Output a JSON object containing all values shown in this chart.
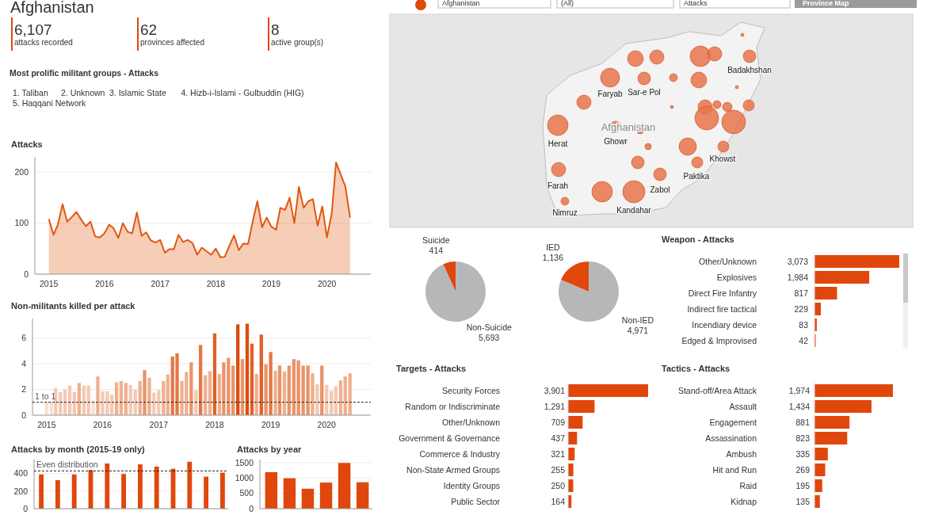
{
  "chart_data": [
    {
      "type": "other",
      "annotations": [
        "Afghanistan",
        "(All)",
        "Attacks",
        "Province Map"
      ]
    },
    {
      "type": "other",
      "title": "Afghanistan",
      "annotations": [
        "6,107",
        "attacks recorded",
        "62",
        "provinces affected",
        "8",
        "active group(s)"
      ]
    },
    {
      "type": "other",
      "title": "Most prolific militant groups - Attacks",
      "annotations": [
        "1. Taliban",
        "2. Unknown",
        "3. Islamic State",
        "4. Hizb-i-Islami - Gulbuddin (HIG)",
        "5. Haqqani Network"
      ]
    },
    {
      "type": "other",
      "annotations": [
        "Badakhshan",
        "Faryab",
        "Sar-e Pol",
        "Afghanistan",
        "Herat",
        "Ghowr",
        "Khowst",
        "Paktika",
        "Farah",
        "Zabol",
        "Nimruz",
        "Kandahar"
      ]
    },
    {
      "type": "area",
      "title": "Attacks",
      "color": "#e0580f",
      "grid": "y",
      "xlim": [
        "2014-10-01",
        "2020-10-15"
      ],
      "xticks": [
        "2015",
        "2016",
        "2017",
        "2018",
        "2019",
        "2020"
      ],
      "ylim": [
        0,
        230
      ],
      "yticks": [
        0,
        100,
        200
      ],
      "x": [
        "2015-01",
        "2015-02",
        "2015-03",
        "2015-04",
        "2015-05",
        "2015-06",
        "2015-07",
        "2015-08",
        "2015-09",
        "2015-10",
        "2015-11",
        "2015-12",
        "2016-01",
        "2016-02",
        "2016-03",
        "2016-04",
        "2016-05",
        "2016-06",
        "2016-07",
        "2016-08",
        "2016-09",
        "2016-10",
        "2016-11",
        "2016-12",
        "2017-01",
        "2017-02",
        "2017-03",
        "2017-04",
        "2017-05",
        "2017-06",
        "2017-07",
        "2017-08",
        "2017-09",
        "2017-10",
        "2017-11",
        "2017-12",
        "2018-01",
        "2018-02",
        "2018-03",
        "2018-04",
        "2018-05",
        "2018-06",
        "2018-07",
        "2018-08",
        "2018-09",
        "2018-10",
        "2018-11",
        "2018-12",
        "2019-01",
        "2019-02",
        "2019-03",
        "2019-04",
        "2019-05",
        "2019-06",
        "2019-07",
        "2019-08",
        "2019-09",
        "2019-10",
        "2019-11",
        "2019-12",
        "2020-01",
        "2020-02",
        "2020-03",
        "2020-04",
        "2020-05",
        "2020-06"
      ],
      "values": [
        108,
        77,
        97,
        137,
        103,
        112,
        122,
        107,
        94,
        103,
        74,
        72,
        80,
        97,
        90,
        71,
        100,
        83,
        80,
        121,
        75,
        82,
        66,
        62,
        67,
        42,
        49,
        49,
        77,
        63,
        67,
        61,
        38,
        52,
        45,
        38,
        50,
        33,
        34,
        56,
        76,
        47,
        60,
        59,
        104,
        143,
        92,
        111,
        93,
        87,
        130,
        126,
        150,
        100,
        171,
        130,
        143,
        147,
        95,
        133,
        72,
        118,
        219,
        195,
        172,
        111
      ]
    },
    {
      "type": "bar",
      "title": "Non-militants killed per attack",
      "grid": "y",
      "xlim": [
        "2014-10-01",
        "2020-10-15"
      ],
      "xticks": [
        "2015",
        "2016",
        "2017",
        "2018",
        "2019",
        "2020"
      ],
      "ylim": [
        0,
        7.5
      ],
      "yticks": [
        0,
        2,
        4,
        6
      ],
      "ref_lines": [
        {
          "axis": "y",
          "value": 1,
          "label": "1 to 1",
          "line_style": "dashed",
          "color": "#222222"
        }
      ],
      "x": [
        "2015-01",
        "2015-02",
        "2015-03",
        "2015-04",
        "2015-05",
        "2015-06",
        "2015-07",
        "2015-08",
        "2015-09",
        "2015-10",
        "2015-11",
        "2015-12",
        "2016-01",
        "2016-02",
        "2016-03",
        "2016-04",
        "2016-05",
        "2016-06",
        "2016-07",
        "2016-08",
        "2016-09",
        "2016-10",
        "2016-11",
        "2016-12",
        "2017-01",
        "2017-02",
        "2017-03",
        "2017-04",
        "2017-05",
        "2017-06",
        "2017-07",
        "2017-08",
        "2017-09",
        "2017-10",
        "2017-11",
        "2017-12",
        "2018-01",
        "2018-02",
        "2018-03",
        "2018-04",
        "2018-05",
        "2018-06",
        "2018-07",
        "2018-08",
        "2018-09",
        "2018-10",
        "2018-11",
        "2018-12",
        "2019-01",
        "2019-02",
        "2019-03",
        "2019-04",
        "2019-05",
        "2019-06",
        "2019-07",
        "2019-08",
        "2019-09",
        "2019-10",
        "2019-11",
        "2019-12",
        "2020-01",
        "2020-02",
        "2020-03",
        "2020-04",
        "2020-05",
        "2020-06"
      ],
      "values": [
        1.0,
        1.0,
        2.1,
        1.8,
        2.0,
        2.3,
        1.8,
        2.5,
        2.3,
        2.3,
        1.2,
        3.0,
        1.85,
        1.85,
        1.6,
        2.55,
        2.65,
        2.5,
        2.35,
        2.0,
        2.65,
        3.5,
        2.9,
        1.75,
        1.95,
        2.65,
        3.15,
        4.55,
        4.8,
        2.65,
        3.35,
        4.1,
        1.95,
        5.45,
        3.1,
        3.4,
        6.35,
        3.2,
        4.1,
        4.45,
        3.85,
        7.05,
        4.35,
        7.1,
        5.55,
        3.2,
        6.25,
        3.95,
        4.9,
        3.45,
        3.85,
        3.4,
        3.85,
        4.35,
        4.25,
        3.85,
        3.85,
        3.25,
        2.4,
        3.85,
        2.35,
        1.9,
        2.25,
        2.7,
        3.0,
        3.25
      ],
      "colors": [
        "#f8e0d3",
        "#f8e0d3",
        "#f4c9b3",
        "#f4c9b3",
        "#f4c9b3",
        "#f4c9b3",
        "#f4c9b3",
        "#efb08f",
        "#f4c9b3",
        "#f4c9b3",
        "#f8e0d3",
        "#efb08f",
        "#f4c9b3",
        "#f4c9b3",
        "#f4c9b3",
        "#efb08f",
        "#efb08f",
        "#efb08f",
        "#f4c9b3",
        "#f4c9b3",
        "#efb08f",
        "#ea936a",
        "#efb08f",
        "#f4c9b3",
        "#f4c9b3",
        "#efb08f",
        "#efb08f",
        "#e57745",
        "#e57745",
        "#efb08f",
        "#efb08f",
        "#ea936a",
        "#f4c9b3",
        "#e57745",
        "#efb08f",
        "#efb08f",
        "#e0602a",
        "#efb08f",
        "#ea936a",
        "#ea936a",
        "#ea936a",
        "#dd4c0e",
        "#ea936a",
        "#dd4c0e",
        "#e0602a",
        "#efb08f",
        "#e0602a",
        "#ea936a",
        "#e57745",
        "#efb08f",
        "#ea936a",
        "#efb08f",
        "#ea936a",
        "#ea936a",
        "#ea936a",
        "#ea936a",
        "#ea936a",
        "#efb08f",
        "#f4c9b3",
        "#ea936a",
        "#f4c9b3",
        "#f4c9b3",
        "#f4c9b3",
        "#efb08f",
        "#efb08f",
        "#efb08f"
      ]
    },
    {
      "type": "bar",
      "title": "Attacks by month (2015-19 only)",
      "color": "#e0470c",
      "grid": "y",
      "ylim": [
        0,
        560
      ],
      "yticks": [
        0,
        200,
        400
      ],
      "ref_lines": [
        {
          "axis": "y",
          "value": 430,
          "label": "Even distribution",
          "line_style": "dashed",
          "color": "#222222"
        }
      ],
      "tick_labels": "y",
      "categories": [
        null,
        null,
        null,
        null,
        null,
        null,
        null,
        null,
        null,
        null,
        null,
        null
      ],
      "values": [
        390,
        325,
        390,
        440,
        515,
        395,
        505,
        480,
        455,
        535,
        365,
        410
      ]
    },
    {
      "type": "bar",
      "title": "Attacks by year",
      "color": "#e0470c",
      "grid": "y",
      "ylim": [
        0,
        1600
      ],
      "yticks": [
        0,
        500,
        1000,
        1500
      ],
      "categories": [
        null,
        null,
        null,
        null,
        null,
        null
      ],
      "tick_labels": "y",
      "values": [
        1190,
        990,
        650,
        850,
        1490,
        860
      ]
    },
    {
      "type": "pie",
      "categories": [
        "Suicide",
        "Non-Suicide"
      ],
      "values": [
        414,
        5693
      ],
      "value_labels": [
        "414",
        "5,693"
      ],
      "colors": [
        "#e0470c",
        "#b5b7b9"
      ]
    },
    {
      "type": "pie",
      "categories": [
        "IED",
        "Non-IED"
      ],
      "values": [
        1136,
        4971
      ],
      "value_labels": [
        "1,136",
        "4,971"
      ],
      "colors": [
        "#e0470c",
        "#b5b7b9"
      ]
    },
    {
      "type": "bar",
      "orientation": "horizontal",
      "title": "Weapon - Attacks",
      "color": "#e0470c",
      "categories": [
        "Other/Unknown",
        "Explosives",
        "Direct Fire Infantry",
        "Indirect fire tactical",
        "Incendiary device",
        "Edged & Improvised"
      ],
      "values": [
        3073,
        1984,
        817,
        229,
        83,
        42
      ],
      "value_labels": [
        "3,073",
        "1,984",
        "817",
        "229",
        "83",
        "42"
      ]
    },
    {
      "type": "bar",
      "orientation": "horizontal",
      "title": "Targets - Attacks",
      "color": "#e0470c",
      "categories": [
        "Security Forces",
        "Random or Indiscriminate",
        "Other/Unknown",
        "Government & Governance",
        "Commerce & Industry",
        "Non-State Armed Groups",
        "Identity Groups",
        "Public Sector"
      ],
      "values": [
        3901,
        1291,
        709,
        437,
        321,
        255,
        250,
        164
      ],
      "value_labels": [
        "3,901",
        "1,291",
        "709",
        "437",
        "321",
        "255",
        "250",
        "164"
      ]
    },
    {
      "type": "bar",
      "orientation": "horizontal",
      "title": "Tactics - Attacks",
      "color": "#e0470c",
      "categories": [
        "Stand-off/Area Attack",
        "Assault",
        "Engagement",
        "Assassination",
        "Ambush",
        "Hit and Run",
        "Raid",
        "Kidnap"
      ],
      "values": [
        1974,
        1434,
        881,
        823,
        335,
        269,
        195,
        135
      ],
      "value_labels": [
        "1,974",
        "1,434",
        "881",
        "823",
        "335",
        "269",
        "195",
        "135"
      ]
    }
  ]
}
